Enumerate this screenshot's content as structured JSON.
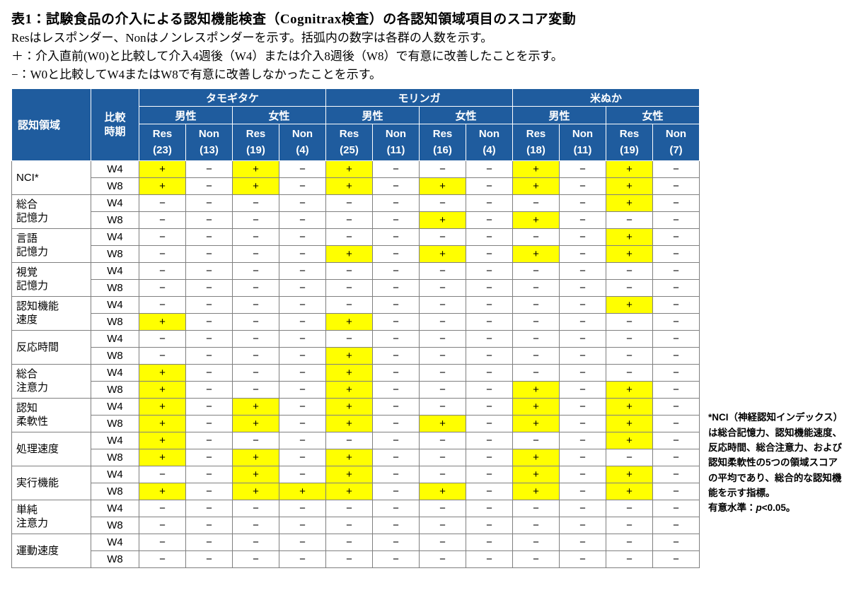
{
  "title": "表1：試験食品の介入による認知機能検査（Cognitrax検査）の各認知領域項目のスコア変動",
  "notes": [
    "Resはレスポンダー、Nonはノンレスポンダーを示す。括弧内の数字は各群の人数を示す。",
    "＋：介入直前(W0)と比較して介入4週後（W4）または介入8週後（W8）で有意に改善したことを示す。",
    "−：W0と比較してW4またはW8で有意に改善しなかったことを示す。"
  ],
  "side_note": {
    "text": "*NCI（神経認知インデックス）は総合記憶力、認知機能速度、反応時間、総合注意力、および認知柔軟性の5つの領域スコアの平均であり、総合的な認知機能を示す指標。",
    "sig_prefix": "有意水準：",
    "sig_p": "p",
    "sig_rest": "<0.05。"
  },
  "colors": {
    "header_bg": "#1f5c9e",
    "highlight": "#ffff00",
    "grid": "#7f7f7f"
  },
  "table": {
    "periods": [
      "W4",
      "W8"
    ],
    "header": {
      "domain": "認知領域",
      "period": "比較\n時期",
      "groups": [
        {
          "label": "タモギタケ",
          "genders": [
            {
              "label": "男性",
              "cols": [
                {
                  "type": "Res",
                  "n": "(23)"
                },
                {
                  "type": "Non",
                  "n": "(13)"
                }
              ]
            },
            {
              "label": "女性",
              "cols": [
                {
                  "type": "Res",
                  "n": "(19)"
                },
                {
                  "type": "Non",
                  "n": "(4)"
                }
              ]
            }
          ]
        },
        {
          "label": "モリンガ",
          "genders": [
            {
              "label": "男性",
              "cols": [
                {
                  "type": "Res",
                  "n": "(25)"
                },
                {
                  "type": "Non",
                  "n": "(11)"
                }
              ]
            },
            {
              "label": "女性",
              "cols": [
                {
                  "type": "Res",
                  "n": "(16)"
                },
                {
                  "type": "Non",
                  "n": "(4)"
                }
              ]
            }
          ]
        },
        {
          "label": "米ぬか",
          "genders": [
            {
              "label": "男性",
              "cols": [
                {
                  "type": "Res",
                  "n": "(18)"
                },
                {
                  "type": "Non",
                  "n": "(11)"
                }
              ]
            },
            {
              "label": "女性",
              "cols": [
                {
                  "type": "Res",
                  "n": "(19)"
                },
                {
                  "type": "Non",
                  "n": "(7)"
                }
              ]
            }
          ]
        }
      ]
    },
    "rows": [
      {
        "domain": "NCI*",
        "w4": [
          "+",
          "−",
          "+",
          "−",
          "+",
          "−",
          "−",
          "−",
          "+",
          "−",
          "+",
          "−"
        ],
        "w8": [
          "+",
          "−",
          "+",
          "−",
          "+",
          "−",
          "+",
          "−",
          "+",
          "−",
          "+",
          "−"
        ]
      },
      {
        "domain": "総合\n記憶力",
        "w4": [
          "−",
          "−",
          "−",
          "−",
          "−",
          "−",
          "−",
          "−",
          "−",
          "−",
          "+",
          "−"
        ],
        "w8": [
          "−",
          "−",
          "−",
          "−",
          "−",
          "−",
          "+",
          "−",
          "+",
          "−",
          "−",
          "−"
        ]
      },
      {
        "domain": "言語\n記憶力",
        "w4": [
          "−",
          "−",
          "−",
          "−",
          "−",
          "−",
          "−",
          "−",
          "−",
          "−",
          "+",
          "−"
        ],
        "w8": [
          "−",
          "−",
          "−",
          "−",
          "+",
          "−",
          "+",
          "−",
          "+",
          "−",
          "+",
          "−"
        ]
      },
      {
        "domain": "視覚\n記憶力",
        "w4": [
          "−",
          "−",
          "−",
          "−",
          "−",
          "−",
          "−",
          "−",
          "−",
          "−",
          "−",
          "−"
        ],
        "w8": [
          "−",
          "−",
          "−",
          "−",
          "−",
          "−",
          "−",
          "−",
          "−",
          "−",
          "−",
          "−"
        ]
      },
      {
        "domain": "認知機能\n速度",
        "w4": [
          "−",
          "−",
          "−",
          "−",
          "−",
          "−",
          "−",
          "−",
          "−",
          "−",
          "+",
          "−"
        ],
        "w8": [
          "+",
          "−",
          "−",
          "−",
          "+",
          "−",
          "−",
          "−",
          "−",
          "−",
          "−",
          "−"
        ]
      },
      {
        "domain": "反応時間",
        "w4": [
          "−",
          "−",
          "−",
          "−",
          "−",
          "−",
          "−",
          "−",
          "−",
          "−",
          "−",
          "−"
        ],
        "w8": [
          "−",
          "−",
          "−",
          "−",
          "+",
          "−",
          "−",
          "−",
          "−",
          "−",
          "−",
          "−"
        ]
      },
      {
        "domain": "総合\n注意力",
        "w4": [
          "+",
          "−",
          "−",
          "−",
          "+",
          "−",
          "−",
          "−",
          "−",
          "−",
          "−",
          "−"
        ],
        "w8": [
          "+",
          "−",
          "−",
          "−",
          "+",
          "−",
          "−",
          "−",
          "+",
          "−",
          "+",
          "−"
        ]
      },
      {
        "domain": "認知\n柔軟性",
        "w4": [
          "+",
          "−",
          "+",
          "−",
          "+",
          "−",
          "−",
          "−",
          "+",
          "−",
          "+",
          "−"
        ],
        "w8": [
          "+",
          "−",
          "+",
          "−",
          "+",
          "−",
          "+",
          "−",
          "+",
          "−",
          "+",
          "−"
        ]
      },
      {
        "domain": "処理速度",
        "w4": [
          "+",
          "−",
          "−",
          "−",
          "−",
          "−",
          "−",
          "−",
          "−",
          "−",
          "+",
          "−"
        ],
        "w8": [
          "+",
          "−",
          "+",
          "−",
          "+",
          "−",
          "−",
          "−",
          "+",
          "−",
          "−",
          "−"
        ]
      },
      {
        "domain": "実行機能",
        "w4": [
          "−",
          "−",
          "+",
          "−",
          "+",
          "−",
          "−",
          "−",
          "+",
          "−",
          "+",
          "−"
        ],
        "w8": [
          "+",
          "−",
          "+",
          "+",
          "+",
          "−",
          "+",
          "−",
          "+",
          "−",
          "+",
          "−"
        ]
      },
      {
        "domain": "単純\n注意力",
        "w4": [
          "−",
          "−",
          "−",
          "−",
          "−",
          "−",
          "−",
          "−",
          "−",
          "−",
          "−",
          "−"
        ],
        "w8": [
          "−",
          "−",
          "−",
          "−",
          "−",
          "−",
          "−",
          "−",
          "−",
          "−",
          "−",
          "−"
        ]
      },
      {
        "domain": "運動速度",
        "w4": [
          "−",
          "−",
          "−",
          "−",
          "−",
          "−",
          "−",
          "−",
          "−",
          "−",
          "−",
          "−"
        ],
        "w8": [
          "−",
          "−",
          "−",
          "−",
          "−",
          "−",
          "−",
          "−",
          "−",
          "−",
          "−",
          "−"
        ]
      }
    ]
  }
}
